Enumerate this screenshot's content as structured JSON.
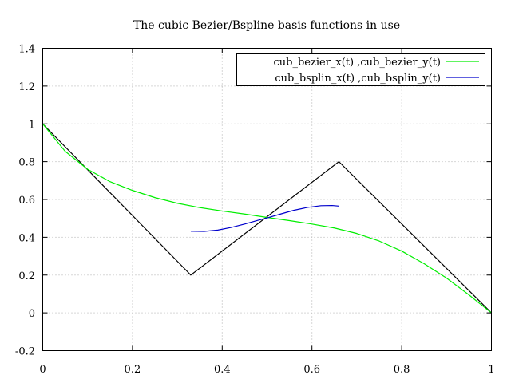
{
  "chart_data": {
    "type": "line",
    "title": "The cubic Bezier/Bspline basis functions in use",
    "xlim": [
      0,
      1
    ],
    "ylim": [
      -0.2,
      1.4
    ],
    "xticks": [
      0,
      0.2,
      0.4,
      0.6,
      0.8,
      1
    ],
    "xtick_labels": [
      "0",
      "0.2",
      "0.4",
      "0.6",
      "0.8",
      "1"
    ],
    "yticks": [
      -0.2,
      0,
      0.2,
      0.4,
      0.6,
      0.8,
      1,
      1.2,
      1.4
    ],
    "ytick_labels": [
      "-0.2",
      "0",
      "0.2",
      "0.4",
      "0.6",
      "0.8",
      "1",
      "1.2",
      "1.4"
    ],
    "grid": true,
    "legend_position": "top-right",
    "control_polygon": {
      "color": "#000000",
      "x": [
        0,
        0.33,
        0.66,
        1
      ],
      "y": [
        1,
        0.2,
        0.8,
        0
      ]
    },
    "series": [
      {
        "name": "cub_bezier_x(t) ,cub_bezier_y(t)",
        "color": "#00ee00",
        "x": [
          0,
          0.05,
          0.1,
          0.15,
          0.2,
          0.25,
          0.3,
          0.35,
          0.4,
          0.45,
          0.5,
          0.55,
          0.6,
          0.65,
          0.7,
          0.75,
          0.8,
          0.85,
          0.9,
          0.95,
          1
        ],
        "y": [
          1,
          0.855,
          0.76,
          0.694,
          0.648,
          0.61,
          0.58,
          0.557,
          0.539,
          0.523,
          0.505,
          0.488,
          0.47,
          0.449,
          0.42,
          0.38,
          0.327,
          0.26,
          0.184,
          0.095,
          0
        ]
      },
      {
        "name": "cub_bsplin_x(t) ,cub_bsplin_y(t)",
        "color": "#0000cc",
        "x": [
          0.33,
          0.36,
          0.39,
          0.42,
          0.45,
          0.48,
          0.5,
          0.53,
          0.56,
          0.59,
          0.62,
          0.645,
          0.66
        ],
        "y": [
          0.432,
          0.431,
          0.438,
          0.452,
          0.47,
          0.49,
          0.502,
          0.523,
          0.543,
          0.558,
          0.567,
          0.568,
          0.565
        ]
      }
    ]
  }
}
